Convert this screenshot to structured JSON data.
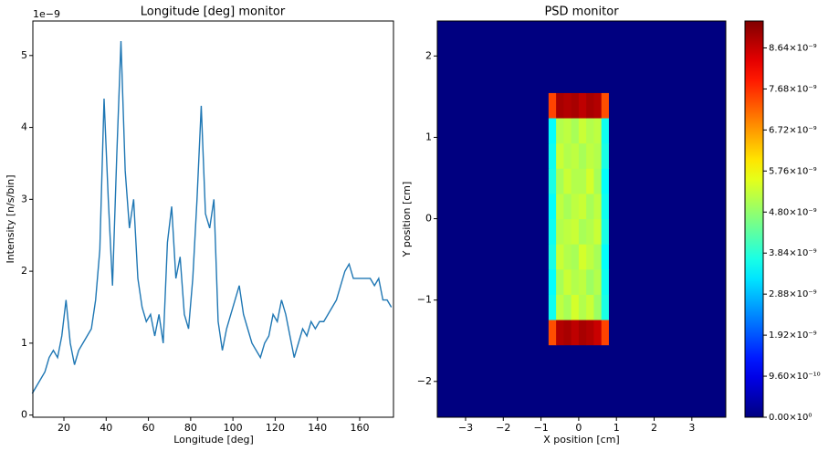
{
  "chart_data": [
    {
      "type": "line",
      "title": "Longitude [deg] monitor",
      "xlabel": "Longitude [deg]",
      "ylabel": "Intensity [n/s/bin]",
      "y_offset_label": "1e−9",
      "color": "#1f77b4",
      "x": [
        5,
        7,
        9,
        11,
        13,
        15,
        17,
        19,
        21,
        23,
        25,
        27,
        29,
        31,
        33,
        35,
        37,
        39,
        41,
        43,
        45,
        47,
        49,
        51,
        53,
        55,
        57,
        59,
        61,
        63,
        65,
        67,
        69,
        71,
        73,
        75,
        77,
        79,
        81,
        83,
        85,
        87,
        89,
        91,
        93,
        95,
        97,
        99,
        101,
        103,
        105,
        107,
        109,
        111,
        113,
        115,
        117,
        119,
        121,
        123,
        125,
        127,
        129,
        131,
        133,
        135,
        137,
        139,
        141,
        143,
        145,
        147,
        149,
        151,
        153,
        155,
        157,
        159,
        161,
        163,
        165,
        167,
        169,
        171,
        173,
        175
      ],
      "values": [
        0.3,
        0.4,
        0.5,
        0.6,
        0.8,
        0.9,
        0.8,
        1.1,
        1.6,
        1.0,
        0.7,
        0.9,
        1.0,
        1.1,
        1.2,
        1.6,
        2.3,
        4.4,
        3.0,
        1.8,
        3.6,
        5.2,
        3.4,
        2.6,
        3.0,
        1.9,
        1.5,
        1.3,
        1.4,
        1.1,
        1.4,
        1.0,
        2.4,
        2.9,
        1.9,
        2.2,
        1.4,
        1.2,
        1.9,
        3.0,
        4.3,
        2.8,
        2.6,
        3.0,
        1.3,
        0.9,
        1.2,
        1.4,
        1.6,
        1.8,
        1.4,
        1.2,
        1.0,
        0.9,
        0.8,
        1.0,
        1.1,
        1.4,
        1.3,
        1.6,
        1.4,
        1.1,
        0.8,
        1.0,
        1.2,
        1.1,
        1.3,
        1.2,
        1.3,
        1.3,
        1.4,
        1.5,
        1.6,
        1.8,
        2.0,
        2.1,
        1.9,
        1.9,
        1.9,
        1.9,
        1.9,
        1.8,
        1.9,
        1.6,
        1.6,
        1.5
      ],
      "xlim": [
        5.3,
        176
      ],
      "ylim": [
        -0.03,
        5.48
      ],
      "xticks": [
        20,
        40,
        60,
        80,
        100,
        120,
        140,
        160
      ],
      "yticks": [
        0,
        1,
        2,
        3,
        4,
        5
      ]
    },
    {
      "type": "heatmap",
      "title": "PSD monitor",
      "xlabel": "X position [cm]",
      "ylabel": "Y position [cm]",
      "colormap": "jet",
      "xbins": [
        -3.75,
        -0.8,
        -0.6,
        -0.4,
        -0.2,
        0,
        0.2,
        0.4,
        0.6,
        0.8,
        3.9
      ],
      "ybins": [
        -2.44,
        -1.55,
        -1.24,
        -0.93,
        -0.62,
        -0.31,
        0,
        0.31,
        0.62,
        0.93,
        1.24,
        1.55,
        2.43
      ],
      "values": [
        [
          0,
          0,
          0,
          0,
          0,
          0,
          0,
          0,
          0,
          0
        ],
        [
          0,
          7.4e-09,
          8.8e-09,
          8.9e-09,
          8.7e-09,
          8.9e-09,
          8.8e-09,
          8.6e-09,
          7.5e-09,
          0
        ],
        [
          0,
          3.6e-09,
          5.2e-09,
          5e-09,
          5.4e-09,
          5.1e-09,
          5.3e-09,
          4.9e-09,
          3.7e-09,
          0
        ],
        [
          0,
          3.5e-09,
          5e-09,
          5.3e-09,
          5.1e-09,
          5.2e-09,
          4.9e-09,
          5.1e-09,
          3.6e-09,
          0
        ],
        [
          0,
          3.7e-09,
          5.3e-09,
          5.1e-09,
          5e-09,
          5.4e-09,
          5.2e-09,
          5e-09,
          3.5e-09,
          0
        ],
        [
          0,
          3.6e-09,
          5.1e-09,
          5.2e-09,
          5.3e-09,
          5e-09,
          5.1e-09,
          5.3e-09,
          3.7e-09,
          0
        ],
        [
          0,
          3.5e-09,
          5.2e-09,
          5e-09,
          5.2e-09,
          5.3e-09,
          5e-09,
          5.2e-09,
          3.6e-09,
          0
        ],
        [
          0,
          3.7e-09,
          5e-09,
          5.3e-09,
          5.1e-09,
          5.1e-09,
          5.4e-09,
          5e-09,
          3.5e-09,
          0
        ],
        [
          0,
          3.6e-09,
          5.3e-09,
          5.1e-09,
          5.2e-09,
          5e-09,
          5.2e-09,
          5.1e-09,
          3.7e-09,
          0
        ],
        [
          0,
          3.5e-09,
          5.1e-09,
          5.2e-09,
          5e-09,
          5.3e-09,
          5.1e-09,
          5.2e-09,
          3.6e-09,
          0
        ],
        [
          0,
          7.5e-09,
          8.9e-09,
          8.8e-09,
          8.9e-09,
          8.7e-09,
          8.9e-09,
          8.8e-09,
          7.4e-09,
          0
        ],
        [
          0,
          0,
          0,
          0,
          0,
          0,
          0,
          0,
          0,
          0
        ]
      ],
      "xlim": [
        -3.75,
        3.9
      ],
      "ylim": [
        -2.44,
        2.43
      ],
      "clim": [
        0,
        9.27e-09
      ],
      "xticks": [
        {
          "value": -3,
          "label": "−3"
        },
        {
          "value": -2,
          "label": "−2"
        },
        {
          "value": -1,
          "label": "−1"
        },
        0,
        1,
        2,
        3
      ],
      "yticks": [
        {
          "value": -2,
          "label": "−2"
        },
        {
          "value": -1,
          "label": "−1"
        },
        0,
        1,
        2
      ],
      "cticks": [
        {
          "value": 0,
          "label": "0.00×10⁰"
        },
        {
          "value": 9.6e-10,
          "label": "9.60×10⁻¹⁰"
        },
        {
          "value": 1.92e-09,
          "label": "1.92×10⁻⁹"
        },
        {
          "value": 2.88e-09,
          "label": "2.88×10⁻⁹"
        },
        {
          "value": 3.84e-09,
          "label": "3.84×10⁻⁹"
        },
        {
          "value": 4.8e-09,
          "label": "4.80×10⁻⁹"
        },
        {
          "value": 5.76e-09,
          "label": "5.76×10⁻⁹"
        },
        {
          "value": 6.72e-09,
          "label": "6.72×10⁻⁹"
        },
        {
          "value": 7.68e-09,
          "label": "7.68×10⁻⁹"
        },
        {
          "value": 8.64e-09,
          "label": "8.64×10⁻⁹"
        }
      ]
    }
  ]
}
